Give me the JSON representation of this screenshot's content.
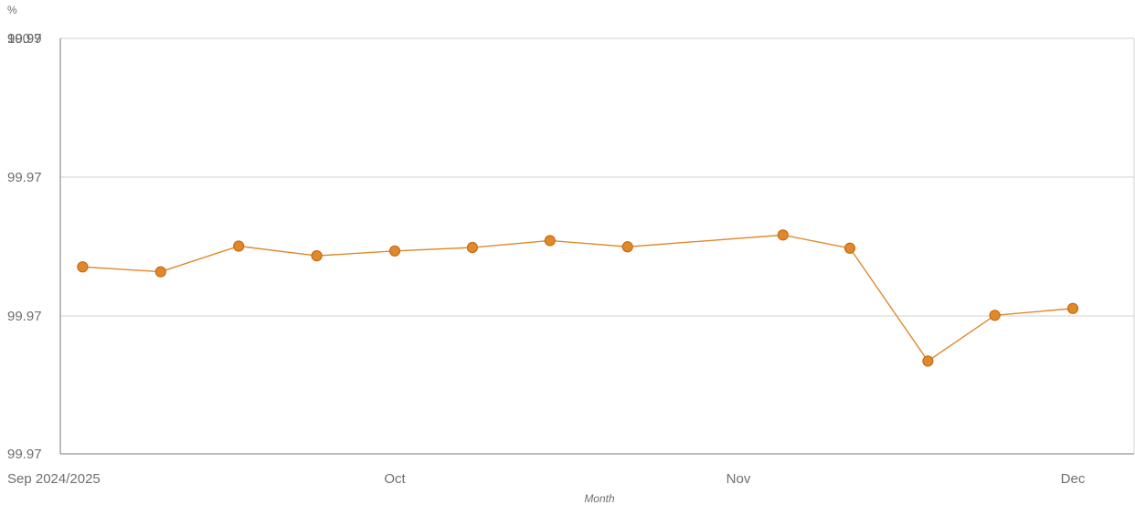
{
  "chart_data": {
    "type": "line",
    "title": "",
    "xlabel": "Month",
    "ylabel": "%",
    "x": [
      "2024-09-03",
      "2024-09-10",
      "2024-09-17",
      "2024-09-24",
      "2024-10-01",
      "2024-10-08",
      "2024-10-15",
      "2024-10-22",
      "2024-11-05",
      "2024-11-11",
      "2024-11-18",
      "2024-11-24",
      "2024-12-01"
    ],
    "series": [
      {
        "color": "#e0892b",
        "values": [
          99.997,
          99.9963,
          100.0,
          99.9986,
          99.9993,
          99.9998,
          100.0008,
          99.9999,
          100.0016,
          99.9997,
          99.9834,
          99.99,
          99.991
        ]
      }
    ],
    "xtick_labels": [
      "Sep 2024/2025",
      "Oct",
      "Nov",
      "Dec"
    ],
    "ytick_labels": [
      "99.97",
      "99.97",
      "99.97",
      "99.97",
      "99.99",
      "100"
    ],
    "ylim": [
      99.97,
      100.03
    ],
    "grid": true,
    "legend": "none"
  }
}
